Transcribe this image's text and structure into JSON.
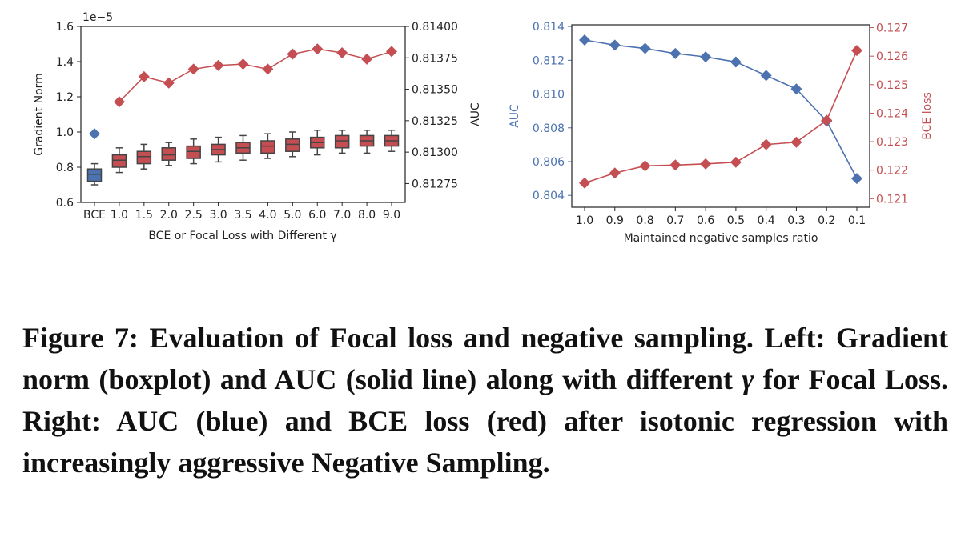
{
  "chart_data": [
    {
      "type": "boxplot+line",
      "categories": [
        "BCE",
        "1.0",
        "1.5",
        "2.0",
        "2.5",
        "3.0",
        "3.5",
        "4.0",
        "5.0",
        "6.0",
        "7.0",
        "8.0",
        "9.0"
      ],
      "xlabel": "BCE or Focal Loss with Different γ",
      "left_axis": {
        "label": "Gradient Norm",
        "multiplier": "1e−5",
        "ylim": [
          0.6,
          1.6
        ],
        "ticks": [
          "0.6",
          "0.8",
          "1.0",
          "1.2",
          "1.4",
          "1.6"
        ]
      },
      "right_axis": {
        "label": "AUC",
        "ylim": [
          0.8126,
          0.814
        ],
        "ticks": [
          "0.81275",
          "0.81300",
          "0.81325",
          "0.81350",
          "0.81375",
          "0.81400"
        ]
      },
      "boxes": [
        {
          "q1": 0.72,
          "median": 0.76,
          "q3": 0.79,
          "whisker_low": 0.7,
          "whisker_high": 0.82,
          "color": "#4c72b0"
        },
        {
          "q1": 0.8,
          "median": 0.84,
          "q3": 0.87,
          "whisker_low": 0.77,
          "whisker_high": 0.91,
          "color": "#c44e52"
        },
        {
          "q1": 0.82,
          "median": 0.86,
          "q3": 0.89,
          "whisker_low": 0.79,
          "whisker_high": 0.93,
          "color": "#c44e52"
        },
        {
          "q1": 0.84,
          "median": 0.87,
          "q3": 0.91,
          "whisker_low": 0.81,
          "whisker_high": 0.94,
          "color": "#c44e52"
        },
        {
          "q1": 0.85,
          "median": 0.89,
          "q3": 0.92,
          "whisker_low": 0.82,
          "whisker_high": 0.96,
          "color": "#c44e52"
        },
        {
          "q1": 0.87,
          "median": 0.9,
          "q3": 0.93,
          "whisker_low": 0.83,
          "whisker_high": 0.97,
          "color": "#c44e52"
        },
        {
          "q1": 0.88,
          "median": 0.91,
          "q3": 0.94,
          "whisker_low": 0.84,
          "whisker_high": 0.98,
          "color": "#c44e52"
        },
        {
          "q1": 0.88,
          "median": 0.92,
          "q3": 0.95,
          "whisker_low": 0.85,
          "whisker_high": 0.99,
          "color": "#c44e52"
        },
        {
          "q1": 0.89,
          "median": 0.93,
          "q3": 0.96,
          "whisker_low": 0.86,
          "whisker_high": 1.0,
          "color": "#c44e52"
        },
        {
          "q1": 0.91,
          "median": 0.94,
          "q3": 0.97,
          "whisker_low": 0.87,
          "whisker_high": 1.01,
          "color": "#c44e52"
        },
        {
          "q1": 0.91,
          "median": 0.95,
          "q3": 0.98,
          "whisker_low": 0.88,
          "whisker_high": 1.01,
          "color": "#c44e52"
        },
        {
          "q1": 0.92,
          "median": 0.95,
          "q3": 0.98,
          "whisker_low": 0.88,
          "whisker_high": 1.01,
          "color": "#c44e52"
        },
        {
          "q1": 0.92,
          "median": 0.95,
          "q3": 0.98,
          "whisker_low": 0.89,
          "whisker_high": 1.01,
          "color": "#c44e52"
        }
      ],
      "bce_gradient_marker": 0.99,
      "auc_series": {
        "name": "AUC",
        "color": "#c44e52",
        "start_index": 1,
        "values": [
          0.8134,
          0.8136,
          0.81355,
          0.81366,
          0.81369,
          0.8137,
          0.81366,
          0.81378,
          0.81382,
          0.81379,
          0.81374,
          0.8138
        ]
      },
      "bce_color": "#4c72b0",
      "focal_color": "#c44e52"
    },
    {
      "type": "line",
      "x": [
        "1.0",
        "0.9",
        "0.8",
        "0.7",
        "0.6",
        "0.5",
        "0.4",
        "0.3",
        "0.2",
        "0.1"
      ],
      "xlabel": "Maintained negative samples ratio",
      "left_axis": {
        "label": "AUC",
        "color": "#4c72b0",
        "ylim": [
          0.8033,
          0.8141
        ],
        "ticks": [
          "0.804",
          "0.806",
          "0.808",
          "0.810",
          "0.812",
          "0.814"
        ]
      },
      "right_axis": {
        "label": "BCE loss",
        "color": "#c44e52",
        "ylim": [
          0.1207,
          0.1271
        ],
        "ticks": [
          "0.121",
          "0.122",
          "0.123",
          "0.124",
          "0.125",
          "0.126",
          "0.127"
        ]
      },
      "series": [
        {
          "name": "AUC",
          "axis": "left",
          "color": "#4c72b0",
          "values": [
            0.8132,
            0.8129,
            0.8127,
            0.8124,
            0.8122,
            0.8119,
            0.8111,
            0.8103,
            0.8084,
            0.805
          ]
        },
        {
          "name": "BCE loss",
          "axis": "right",
          "color": "#c44e52",
          "values": [
            0.12155,
            0.1219,
            0.12215,
            0.12218,
            0.12222,
            0.12228,
            0.1229,
            0.12298,
            0.12375,
            0.1262
          ]
        }
      ]
    }
  ],
  "caption": {
    "prefix": "Figure 7: Evaluation of Focal loss and negative sampling. Left: Gradient norm (boxplot) and AUC (solid line) along with different ",
    "gamma": "γ",
    "suffix": " for Focal Loss. Right: AUC (blue) and BCE loss (red) after isotonic regression with increasingly aggressive Negative Sampling."
  }
}
